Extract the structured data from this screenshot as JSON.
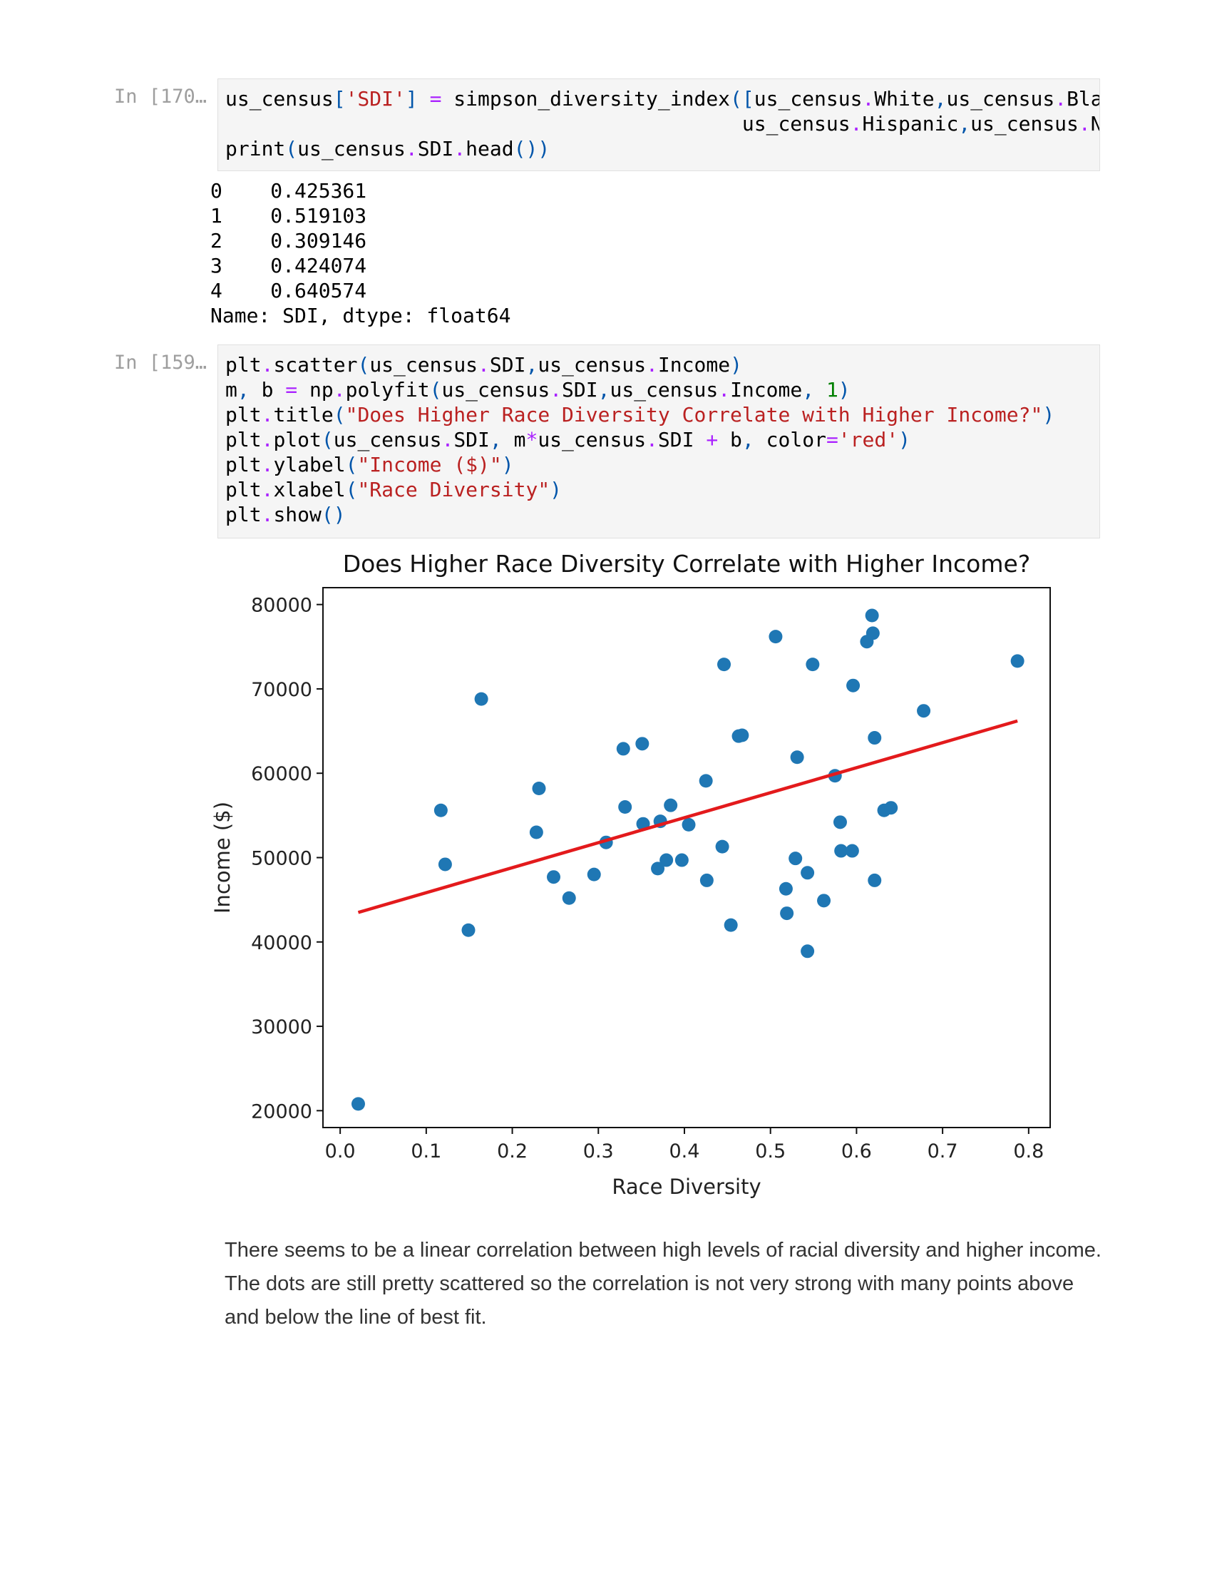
{
  "cell1": {
    "prompt": "In [170…",
    "code": [
      [
        {
          "t": "us_census"
        },
        {
          "t": "[",
          "c": "k-br"
        },
        {
          "t": "'SDI'",
          "c": "k-str"
        },
        {
          "t": "]",
          "c": "k-br"
        },
        {
          "t": " "
        },
        {
          "t": "=",
          "c": "k-op"
        },
        {
          "t": " simpson_diversity_index"
        },
        {
          "t": "(",
          "c": "k-br"
        },
        {
          "t": "[",
          "c": "k-br"
        },
        {
          "t": "us_census"
        },
        {
          "t": ".",
          "c": "k-op"
        },
        {
          "t": "White"
        },
        {
          "t": ",",
          "c": "k-br"
        },
        {
          "t": "us_census"
        },
        {
          "t": ".",
          "c": "k-op"
        },
        {
          "t": "Black"
        },
        {
          "t": ",",
          "c": "k-br"
        }
      ],
      [
        {
          "t": "                                           us_census"
        },
        {
          "t": ".",
          "c": "k-op"
        },
        {
          "t": "Hispanic"
        },
        {
          "t": ",",
          "c": "k-br"
        },
        {
          "t": "us_census"
        },
        {
          "t": ".",
          "c": "k-op"
        },
        {
          "t": "Nat"
        }
      ],
      [
        {
          "t": "print"
        },
        {
          "t": "(",
          "c": "k-br"
        },
        {
          "t": "us_census"
        },
        {
          "t": ".",
          "c": "k-op"
        },
        {
          "t": "SDI"
        },
        {
          "t": ".",
          "c": "k-op"
        },
        {
          "t": "head"
        },
        {
          "t": "()",
          "c": "k-br"
        },
        {
          "t": ")",
          "c": "k-br"
        }
      ]
    ],
    "output": [
      "0    0.425361",
      "1    0.519103",
      "2    0.309146",
      "3    0.424074",
      "4    0.640574",
      "Name: SDI, dtype: float64"
    ]
  },
  "cell2": {
    "prompt": "In [159…",
    "code": [
      [
        {
          "t": "plt"
        },
        {
          "t": ".",
          "c": "k-op"
        },
        {
          "t": "scatter"
        },
        {
          "t": "(",
          "c": "k-br"
        },
        {
          "t": "us_census"
        },
        {
          "t": ".",
          "c": "k-op"
        },
        {
          "t": "SDI"
        },
        {
          "t": ",",
          "c": "k-br"
        },
        {
          "t": "us_census"
        },
        {
          "t": ".",
          "c": "k-op"
        },
        {
          "t": "Income"
        },
        {
          "t": ")",
          "c": "k-br"
        }
      ],
      [
        {
          "t": "m"
        },
        {
          "t": ",",
          "c": "k-br"
        },
        {
          "t": " b "
        },
        {
          "t": "=",
          "c": "k-op"
        },
        {
          "t": " np"
        },
        {
          "t": ".",
          "c": "k-op"
        },
        {
          "t": "polyfit"
        },
        {
          "t": "(",
          "c": "k-br"
        },
        {
          "t": "us_census"
        },
        {
          "t": ".",
          "c": "k-op"
        },
        {
          "t": "SDI"
        },
        {
          "t": ",",
          "c": "k-br"
        },
        {
          "t": "us_census"
        },
        {
          "t": ".",
          "c": "k-op"
        },
        {
          "t": "Income"
        },
        {
          "t": ",",
          "c": "k-br"
        },
        {
          "t": " "
        },
        {
          "t": "1",
          "c": "k-num"
        },
        {
          "t": ")",
          "c": "k-br"
        }
      ],
      [
        {
          "t": "plt"
        },
        {
          "t": ".",
          "c": "k-op"
        },
        {
          "t": "title"
        },
        {
          "t": "(",
          "c": "k-br"
        },
        {
          "t": "\"Does Higher Race Diversity Correlate with Higher Income?\"",
          "c": "k-str"
        },
        {
          "t": ")",
          "c": "k-br"
        }
      ],
      [
        {
          "t": "plt"
        },
        {
          "t": ".",
          "c": "k-op"
        },
        {
          "t": "plot"
        },
        {
          "t": "(",
          "c": "k-br"
        },
        {
          "t": "us_census"
        },
        {
          "t": ".",
          "c": "k-op"
        },
        {
          "t": "SDI"
        },
        {
          "t": ",",
          "c": "k-br"
        },
        {
          "t": " m"
        },
        {
          "t": "*",
          "c": "k-op"
        },
        {
          "t": "us_census"
        },
        {
          "t": ".",
          "c": "k-op"
        },
        {
          "t": "SDI "
        },
        {
          "t": "+",
          "c": "k-op"
        },
        {
          "t": " b"
        },
        {
          "t": ",",
          "c": "k-br"
        },
        {
          "t": " color"
        },
        {
          "t": "=",
          "c": "k-op"
        },
        {
          "t": "'red'",
          "c": "k-str"
        },
        {
          "t": ")",
          "c": "k-br"
        }
      ],
      [
        {
          "t": "plt"
        },
        {
          "t": ".",
          "c": "k-op"
        },
        {
          "t": "ylabel"
        },
        {
          "t": "(",
          "c": "k-br"
        },
        {
          "t": "\"Income ($)\"",
          "c": "k-str"
        },
        {
          "t": ")",
          "c": "k-br"
        }
      ],
      [
        {
          "t": "plt"
        },
        {
          "t": ".",
          "c": "k-op"
        },
        {
          "t": "xlabel"
        },
        {
          "t": "(",
          "c": "k-br"
        },
        {
          "t": "\"Race Diversity\"",
          "c": "k-str"
        },
        {
          "t": ")",
          "c": "k-br"
        }
      ],
      [
        {
          "t": "plt"
        },
        {
          "t": ".",
          "c": "k-op"
        },
        {
          "t": "show"
        },
        {
          "t": "()",
          "c": "k-br"
        }
      ]
    ]
  },
  "chart_data": {
    "type": "scatter",
    "title": "Does Higher Race Diversity Correlate with Higher Income?",
    "xlabel": "Race Diversity",
    "ylabel": "Income ($)",
    "xlim": [
      -0.02,
      0.825
    ],
    "ylim": [
      18000,
      82000
    ],
    "xticks": [
      0.0,
      0.1,
      0.2,
      0.3,
      0.4,
      0.5,
      0.6,
      0.7,
      0.8
    ],
    "xtick_labels": [
      "0.0",
      "0.1",
      "0.2",
      "0.3",
      "0.4",
      "0.5",
      "0.6",
      "0.7",
      "0.8"
    ],
    "yticks": [
      20000,
      30000,
      40000,
      50000,
      60000,
      70000,
      80000
    ],
    "ytick_labels": [
      "20000",
      "30000",
      "40000",
      "50000",
      "60000",
      "70000",
      "80000"
    ],
    "point_color": "#1f77b4",
    "line_color": "#e31a1c",
    "points": [
      [
        0.021,
        20800
      ],
      [
        0.117,
        55600
      ],
      [
        0.122,
        49200
      ],
      [
        0.149,
        41400
      ],
      [
        0.164,
        68800
      ],
      [
        0.228,
        53000
      ],
      [
        0.231,
        58200
      ],
      [
        0.248,
        47700
      ],
      [
        0.266,
        45200
      ],
      [
        0.295,
        48000
      ],
      [
        0.309,
        51800
      ],
      [
        0.329,
        62900
      ],
      [
        0.331,
        56000
      ],
      [
        0.351,
        63500
      ],
      [
        0.352,
        54000
      ],
      [
        0.369,
        48700
      ],
      [
        0.372,
        54300
      ],
      [
        0.379,
        49700
      ],
      [
        0.384,
        56200
      ],
      [
        0.397,
        49700
      ],
      [
        0.405,
        53900
      ],
      [
        0.425,
        59100
      ],
      [
        0.426,
        47300
      ],
      [
        0.444,
        51300
      ],
      [
        0.446,
        72900
      ],
      [
        0.454,
        42000
      ],
      [
        0.463,
        64400
      ],
      [
        0.467,
        64500
      ],
      [
        0.506,
        76200
      ],
      [
        0.518,
        46300
      ],
      [
        0.519,
        43400
      ],
      [
        0.529,
        49900
      ],
      [
        0.531,
        61900
      ],
      [
        0.543,
        38900
      ],
      [
        0.543,
        48200
      ],
      [
        0.549,
        72900
      ],
      [
        0.562,
        44900
      ],
      [
        0.575,
        59700
      ],
      [
        0.581,
        54200
      ],
      [
        0.582,
        50800
      ],
      [
        0.595,
        50800
      ],
      [
        0.596,
        70400
      ],
      [
        0.612,
        75600
      ],
      [
        0.618,
        78700
      ],
      [
        0.619,
        76600
      ],
      [
        0.621,
        64200
      ],
      [
        0.621,
        47300
      ],
      [
        0.632,
        55600
      ],
      [
        0.64,
        55900
      ],
      [
        0.678,
        67400
      ],
      [
        0.787,
        73300
      ]
    ],
    "fit_line": {
      "x": [
        0.021,
        0.787
      ],
      "y": [
        43500,
        66200
      ]
    }
  },
  "markdown": "There seems to be a linear correlation between high levels of racial diversity and higher income. The dots are still pretty scattered so the correlation is not very strong with many points above and below the line of best fit."
}
